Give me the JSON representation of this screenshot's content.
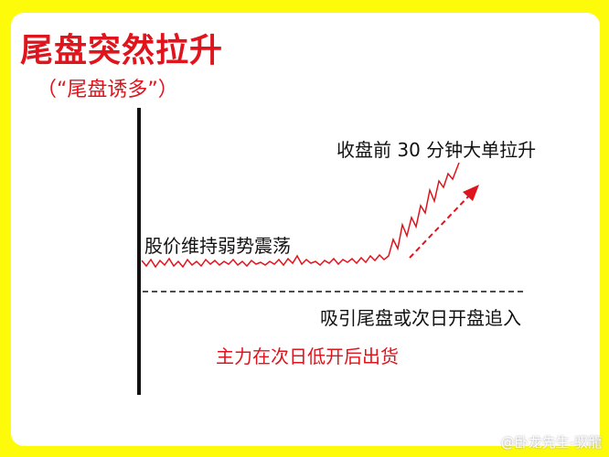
{
  "title": "尾盘突然拉升",
  "subtitle": "（“尾盘诱多”）",
  "labels": {
    "late_pull": "收盘前 30 分钟大单拉升",
    "oscillation": "股价维持弱势震荡",
    "attract": "吸引尾盘或次日开盘追入",
    "sell": "主力在次日低开后出货"
  },
  "watermark": "@卧龙先生-驭龍",
  "colors": {
    "border": "#fdfa0a",
    "accent": "#e0141c",
    "line": "#e0141c",
    "axis": "#111111"
  }
}
